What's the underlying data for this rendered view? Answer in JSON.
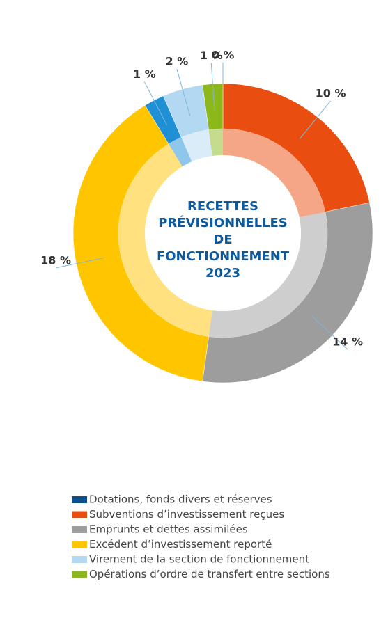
{
  "chart_data": {
    "type": "donut",
    "title": "RECETTES PRÉVISIONNELLES DE FONCTIONNEMENT 2023",
    "categories": [
      "Dotations, fonds divers et réserves",
      "Subventions d’investissement reçues",
      "Emprunts et dettes assimilées",
      "Excédent d’investissement reporté",
      null,
      "Virement de la section de fonctionnement",
      "Opérations d’ordre de transfert entre sections"
    ],
    "values": [
      0,
      10,
      14,
      18,
      1,
      2,
      1
    ],
    "value_labels": [
      "0 %",
      "10 %",
      "14 %",
      "18 %",
      "1 %",
      "2 %",
      "1 %"
    ],
    "colors": [
      "#0b4f8c",
      "#e94e10",
      "#9d9d9d",
      "#ffc600",
      "#1f8fd6",
      "#b3d9f2",
      "#8cb81c"
    ]
  }
}
